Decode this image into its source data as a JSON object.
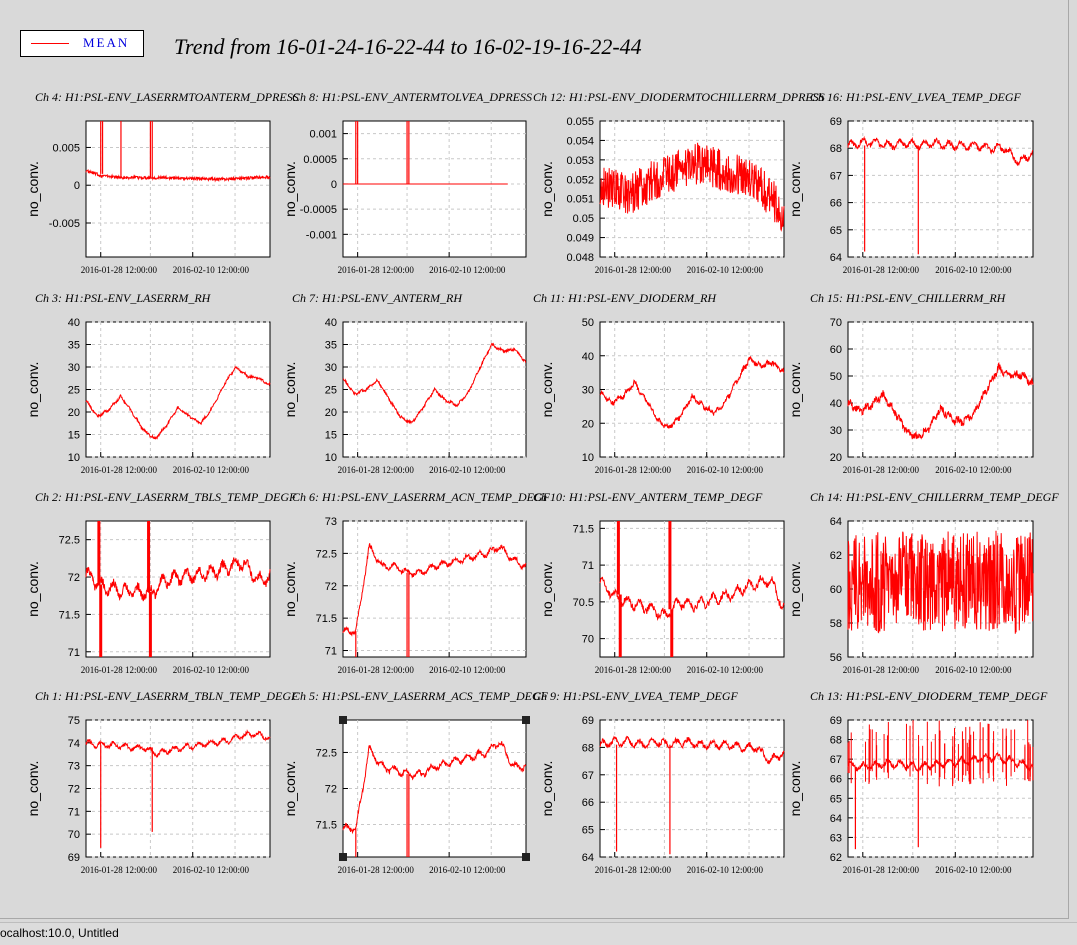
{
  "header": {
    "legend_label": "MEAN",
    "title": "Trend from 16-01-24-16-22-44 to 16-02-19-16-22-44"
  },
  "status": {
    "text": "ocalhost:10.0, Untitled"
  },
  "colors": {
    "trace": "#ff0000",
    "legend_text": "#0000dd",
    "background": "#d9d9d9",
    "plot_background": "#ffffff"
  },
  "chart_data": [
    {
      "type": "line",
      "title": "Ch 4: H1:PSL-ENV_LASERRMTOANTERM_DPRESS",
      "ylabel": "no_conv.",
      "ylim": [
        -0.0095,
        0.0085
      ],
      "yticks": [
        0.005,
        0,
        -0.005
      ],
      "yticklabels": [
        "0.005",
        "0",
        "-0.005"
      ],
      "xticklabels": [
        "2016-01-28 12:00:00",
        "2016-02-10 12:00:00"
      ],
      "grid": true,
      "shape": "dpress1",
      "series": [
        {
          "values": [
            0.0019,
            0.0013,
            0.0011,
            0.001,
            0.001,
            0.001,
            0.001,
            0.0009,
            0.0009,
            0.0008,
            0.0008,
            0.0009,
            0.001,
            0.0011
          ]
        }
      ],
      "spikes": [
        {
          "at": 0.08,
          "to": 0.0085,
          "from": 0.0015
        },
        {
          "at": 0.09,
          "to": 0.0085,
          "from": 0.0015
        },
        {
          "at": 0.19,
          "to": 0.0085,
          "from": 0.001
        },
        {
          "at": 0.35,
          "to": 0.0085,
          "from": 0.001
        },
        {
          "at": 0.36,
          "to": 0.0085,
          "from": 0.001
        }
      ],
      "selected": false
    },
    {
      "type": "line",
      "title": "Ch 8: H1:PSL-ENV_ANTERMTOLVEA_DPRESS",
      "ylabel": "no_conv.",
      "ylim": [
        -0.00145,
        0.00125
      ],
      "yticks": [
        0.001,
        0.0005,
        0,
        -0.0005,
        -0.001
      ],
      "yticklabels": [
        "0.001",
        "0.0005",
        "0",
        "-0.0005",
        "-0.001"
      ],
      "xticklabels": [
        "2016-01-28 12:00:00",
        "2016-02-10 12:00:00"
      ],
      "grid": true,
      "shape": "dpress2",
      "series": [
        {
          "values": [
            0,
            0,
            0,
            0,
            0,
            0,
            0,
            0,
            0,
            0,
            0,
            0,
            0,
            0
          ]
        }
      ],
      "spikes": [
        {
          "at": 0.07,
          "to": 0.00125,
          "from": 0
        },
        {
          "at": 0.08,
          "to": 0.00125,
          "from": 0
        },
        {
          "at": 0.35,
          "to": 0.00125,
          "from": 0
        },
        {
          "at": 0.36,
          "to": 0.00125,
          "from": 0
        }
      ],
      "selected": false
    },
    {
      "type": "line",
      "title": "Ch 12: H1:PSL-ENV_DIODERMTOCHILLERRM_DPRESS",
      "ylabel": "no_conv.",
      "ylim": [
        0.048,
        0.055
      ],
      "yticks": [
        0.055,
        0.054,
        0.053,
        0.052,
        0.051,
        0.05,
        0.049,
        0.048
      ],
      "yticklabels": [
        "0.055",
        "0.054",
        "0.053",
        "0.052",
        "0.051",
        "0.05",
        "0.049",
        "0.048"
      ],
      "xticklabels": [
        "2016-01-28 12:00:00",
        "2016-02-10 12:00:00"
      ],
      "grid": true,
      "shape": "noisyHump",
      "series": [
        {
          "values": [
            0.0518,
            0.0515,
            0.0512,
            0.0516,
            0.052,
            0.0524,
            0.0526,
            0.0528,
            0.0526,
            0.0524,
            0.0522,
            0.0519,
            0.0512,
            0.05
          ]
        }
      ],
      "noise": 0.0011,
      "selected": false
    },
    {
      "type": "line",
      "title": "Ch 16: H1:PSL-ENV_LVEA_TEMP_DEGF",
      "ylabel": "no_conv.",
      "ylim": [
        64,
        69
      ],
      "yticks": [
        69,
        68,
        67,
        66,
        65,
        64
      ],
      "yticklabels": [
        "69",
        "68",
        "67",
        "66",
        "65",
        "64"
      ],
      "xticklabels": [
        "2016-01-28 12:00:00",
        "2016-02-10 12:00:00"
      ],
      "grid": true,
      "shape": "oscFlat",
      "series": [
        {
          "values": [
            68.1,
            68.2,
            68.2,
            68.1,
            68.2,
            68.1,
            68.2,
            68.1,
            68.1,
            68.1,
            68.0,
            68.0,
            67.5,
            67.8
          ]
        }
      ],
      "noise": 0.35,
      "spikes": [
        {
          "at": 0.09,
          "to": 64.2,
          "from": 68.1
        },
        {
          "at": 0.38,
          "to": 64.1,
          "from": 68.1
        }
      ],
      "selected": false
    },
    {
      "type": "line",
      "title": "Ch 3: H1:PSL-ENV_LASERRM_RH",
      "ylabel": "no_conv.",
      "ylim": [
        10,
        40
      ],
      "yticks": [
        40,
        35,
        30,
        25,
        20,
        15,
        10
      ],
      "yticklabels": [
        "40",
        "35",
        "30",
        "25",
        "20",
        "15",
        "10"
      ],
      "xticklabels": [
        "2016-01-28 12:00:00",
        "2016-02-10 12:00:00"
      ],
      "grid": true,
      "shape": "smooth",
      "series": [
        {
          "values": [
            22.5,
            19.0,
            20.5,
            23.5,
            20.0,
            16.0,
            14.0,
            17.0,
            21.0,
            19.0,
            17.5,
            21.0,
            26.0,
            30.0,
            28.0,
            27.5,
            26.0
          ]
        }
      ],
      "noise": 0.5,
      "selected": false
    },
    {
      "type": "line",
      "title": "Ch 7: H1:PSL-ENV_ANTERM_RH",
      "ylabel": "no_conv.",
      "ylim": [
        10,
        40
      ],
      "yticks": [
        40,
        35,
        30,
        25,
        20,
        15,
        10
      ],
      "yticklabels": [
        "40",
        "35",
        "30",
        "25",
        "20",
        "15",
        "10"
      ],
      "xticklabels": [
        "2016-01-28 12:00:00",
        "2016-02-10 12:00:00"
      ],
      "grid": true,
      "shape": "smooth",
      "series": [
        {
          "values": [
            27.5,
            24.0,
            25.0,
            27.0,
            23.0,
            19.0,
            17.5,
            21.0,
            25.0,
            22.5,
            21.5,
            24.5,
            30.0,
            35.0,
            33.5,
            34.0,
            31.0
          ]
        }
      ],
      "noise": 0.5,
      "selected": false
    },
    {
      "type": "line",
      "title": "Ch 11: H1:PSL-ENV_DIODERM_RH",
      "ylabel": "no_conv.",
      "ylim": [
        10,
        50
      ],
      "yticks": [
        50,
        40,
        30,
        20,
        10
      ],
      "yticklabels": [
        "50",
        "40",
        "30",
        "20",
        "10"
      ],
      "xticklabels": [
        "2016-01-28 12:00:00",
        "2016-02-10 12:00:00"
      ],
      "grid": true,
      "shape": "smooth",
      "series": [
        {
          "values": [
            29.0,
            26.0,
            28.0,
            32.0,
            27.0,
            21.0,
            18.5,
            22.0,
            28.0,
            25.0,
            23.0,
            27.0,
            33.0,
            39.0,
            37.0,
            38.0,
            35.0
          ]
        }
      ],
      "noise": 1.4,
      "selected": false
    },
    {
      "type": "line",
      "title": "Ch 15: H1:PSL-ENV_CHILLERRM_RH",
      "ylabel": "no_conv.",
      "ylim": [
        20,
        70
      ],
      "yticks": [
        70,
        60,
        50,
        40,
        30,
        20
      ],
      "yticklabels": [
        "70",
        "60",
        "50",
        "40",
        "30",
        "20"
      ],
      "xticklabels": [
        "2016-01-28 12:00:00",
        "2016-02-10 12:00:00"
      ],
      "grid": true,
      "shape": "smooth",
      "series": [
        {
          "values": [
            40.0,
            37.0,
            39.0,
            43.0,
            37.0,
            30.0,
            27.0,
            31.0,
            38.0,
            34.0,
            33.0,
            37.0,
            45.0,
            53.0,
            50.0,
            50.5,
            47.0
          ]
        }
      ],
      "noise": 2.5,
      "selected": false
    },
    {
      "type": "line",
      "title": "Ch 2: H1:PSL-ENV_LASERRM_TBLS_TEMP_DEGF",
      "ylabel": "no_conv.",
      "ylim": [
        70.93,
        72.75
      ],
      "yticks": [
        72.5,
        72,
        71.5,
        71
      ],
      "yticklabels": [
        "72.5",
        "72",
        "71.5",
        "71"
      ],
      "xticklabels": [
        "2016-01-28 12:00:00",
        "2016-02-10 12:00:00"
      ],
      "grid": true,
      "shape": "oscDrift",
      "series": [
        {
          "values": [
            72.05,
            71.9,
            71.85,
            71.82,
            71.8,
            71.78,
            71.95,
            72.0,
            72.02,
            72.05,
            72.08,
            72.15,
            72.2,
            71.95,
            72.0
          ]
        }
      ],
      "noise": 0.22,
      "spikes": [
        {
          "at": 0.07,
          "to": 72.75,
          "from": 71.9
        },
        {
          "at": 0.08,
          "to": 70.93,
          "from": 71.9
        },
        {
          "at": 0.34,
          "to": 72.75,
          "from": 71.8
        },
        {
          "at": 0.35,
          "to": 70.93,
          "from": 71.8
        }
      ],
      "selected": false
    },
    {
      "type": "line",
      "title": "Ch 6: H1:PSL-ENV_LASERRM_ACN_TEMP_DEGF",
      "ylabel": "no_conv.",
      "ylim": [
        70.9,
        73.0
      ],
      "yticks": [
        73,
        72.5,
        72,
        71.5,
        71
      ],
      "yticklabels": [
        "73",
        "72.5",
        "72",
        "71.5",
        "71"
      ],
      "xticklabels": [
        "2016-01-28 12:00:00",
        "2016-02-10 12:00:00"
      ],
      "grid": true,
      "shape": "stepUp",
      "series": [
        {
          "values": [
            71.3,
            71.3,
            72.6,
            72.3,
            72.3,
            72.2,
            72.2,
            72.3,
            72.35,
            72.4,
            72.45,
            72.5,
            72.6,
            72.4,
            72.3
          ]
        }
      ],
      "noise": 0.12,
      "spikes": [
        {
          "at": 0.35,
          "to": 70.9,
          "from": 72.2
        },
        {
          "at": 0.36,
          "to": 70.9,
          "from": 72.2
        },
        {
          "at": 0.07,
          "to": 70.9,
          "from": 71.3
        }
      ],
      "selected": false
    },
    {
      "type": "line",
      "title": "Ch 10: H1:PSL-ENV_ANTERM_TEMP_DEGF",
      "ylabel": "no_conv.",
      "ylim": [
        69.75,
        71.6
      ],
      "yticks": [
        71.5,
        71,
        70.5,
        70
      ],
      "yticklabels": [
        "71.5",
        "71",
        "70.5",
        "70"
      ],
      "xticklabels": [
        "2016-01-28 12:00:00",
        "2016-02-10 12:00:00"
      ],
      "grid": true,
      "shape": "oscDrift",
      "series": [
        {
          "values": [
            70.8,
            70.6,
            70.5,
            70.45,
            70.4,
            70.3,
            70.5,
            70.45,
            70.5,
            70.55,
            70.6,
            70.7,
            70.75,
            70.8,
            70.4
          ]
        }
      ],
      "noise": 0.18,
      "spikes": [
        {
          "at": 0.1,
          "to": 71.6,
          "from": 70.6
        },
        {
          "at": 0.11,
          "to": 69.75,
          "from": 70.6
        },
        {
          "at": 0.38,
          "to": 71.6,
          "from": 70.4
        },
        {
          "at": 0.39,
          "to": 69.75,
          "from": 70.4
        }
      ],
      "selected": false
    },
    {
      "type": "line",
      "title": "Ch 14: H1:PSL-ENV_CHILLERRM_TEMP_DEGF",
      "ylabel": "no_conv.",
      "ylim": [
        56,
        64
      ],
      "yticks": [
        64,
        62,
        60,
        58,
        56
      ],
      "yticklabels": [
        "64",
        "62",
        "60",
        "58",
        "56"
      ],
      "xticklabels": [
        "2016-01-28 12:00:00",
        "2016-02-10 12:00:00"
      ],
      "grid": true,
      "shape": "band",
      "series": [
        {
          "values": [
            60.5,
            60.5,
            60.4,
            60.5,
            60.6,
            60.5,
            60.5,
            60.4,
            60.5,
            60.5,
            60.4,
            60.5,
            60.3,
            60.5
          ]
        }
      ],
      "noise": 3.0,
      "selected": false
    },
    {
      "type": "line",
      "title": "Ch 1: H1:PSL-ENV_LASERRM_TBLN_TEMP_DEGF",
      "ylabel": "no_conv.",
      "ylim": [
        69,
        75
      ],
      "yticks": [
        75,
        74,
        73,
        72,
        71,
        70,
        69
      ],
      "yticklabels": [
        "75",
        "74",
        "73",
        "72",
        "71",
        "70",
        "69"
      ],
      "xticklabels": [
        "2016-01-28 12:00:00",
        "2016-02-10 12:00:00"
      ],
      "grid": true,
      "shape": "oscFlat",
      "series": [
        {
          "values": [
            74.0,
            73.9,
            73.9,
            73.8,
            73.8,
            73.5,
            73.7,
            73.8,
            73.9,
            74.0,
            74.1,
            74.3,
            74.4,
            74.2
          ]
        }
      ],
      "noise": 0.3,
      "spikes": [
        {
          "at": 0.08,
          "to": 69.4,
          "from": 73.9
        },
        {
          "at": 0.36,
          "to": 70.1,
          "from": 73.8
        }
      ],
      "selected": false
    },
    {
      "type": "line",
      "title": "Ch 5: H1:PSL-ENV_LASERRM_ACS_TEMP_DEGF",
      "ylabel": "no_conv.",
      "ylim": [
        71.05,
        72.95
      ],
      "yticks": [
        72.5,
        72,
        71.5
      ],
      "yticklabels": [
        "72.5",
        "72",
        "71.5"
      ],
      "xticklabels": [
        "2016-01-28 12:00:00",
        "2016-02-10 12:00:00"
      ],
      "grid": true,
      "shape": "stepUp",
      "series": [
        {
          "values": [
            71.45,
            71.45,
            72.55,
            72.3,
            72.25,
            72.2,
            72.2,
            72.3,
            72.35,
            72.4,
            72.45,
            72.5,
            72.65,
            72.3,
            72.3
          ]
        }
      ],
      "noise": 0.12,
      "spikes": [
        {
          "at": 0.35,
          "to": 71.05,
          "from": 72.2
        },
        {
          "at": 0.36,
          "to": 71.05,
          "from": 72.2
        },
        {
          "at": 0.07,
          "to": 71.05,
          "from": 71.45
        }
      ],
      "selected": true
    },
    {
      "type": "line",
      "title": "Ch 9: H1:PSL-ENV_LVEA_TEMP_DEGF",
      "ylabel": "no_conv.",
      "ylim": [
        64,
        69
      ],
      "yticks": [
        69,
        68,
        67,
        66,
        65,
        64
      ],
      "yticklabels": [
        "69",
        "68",
        "67",
        "66",
        "65",
        "64"
      ],
      "xticklabels": [
        "2016-01-28 12:00:00",
        "2016-02-10 12:00:00"
      ],
      "grid": true,
      "shape": "oscFlat",
      "series": [
        {
          "values": [
            68.1,
            68.2,
            68.2,
            68.1,
            68.2,
            68.1,
            68.2,
            68.1,
            68.1,
            68.1,
            68.0,
            68.0,
            67.5,
            67.8
          ]
        }
      ],
      "noise": 0.35,
      "spikes": [
        {
          "at": 0.09,
          "to": 64.2,
          "from": 68.1
        },
        {
          "at": 0.38,
          "to": 64.1,
          "from": 68.1
        }
      ],
      "selected": false
    },
    {
      "type": "line",
      "title": "Ch 13: H1:PSL-ENV_DIODERM_TEMP_DEGF",
      "ylabel": "no_conv.",
      "ylim": [
        62,
        69
      ],
      "yticks": [
        69,
        68,
        67,
        66,
        65,
        64,
        63,
        62
      ],
      "yticklabels": [
        "69",
        "68",
        "67",
        "66",
        "65",
        "64",
        "63",
        "62"
      ],
      "xticklabels": [
        "2016-01-28 12:00:00",
        "2016-02-10 12:00:00"
      ],
      "grid": true,
      "shape": "spiky",
      "series": [
        {
          "values": [
            66.7,
            66.6,
            66.7,
            66.8,
            66.7,
            66.6,
            66.7,
            66.8,
            66.9,
            67.0,
            67.1,
            67.0,
            66.8,
            66.6
          ]
        }
      ],
      "noise": 0.45,
      "spikes": [
        {
          "at": 0.04,
          "to": 62.4,
          "from": 66.5
        },
        {
          "at": 0.38,
          "to": 62.5,
          "from": 66.5
        }
      ],
      "selected": false
    }
  ]
}
